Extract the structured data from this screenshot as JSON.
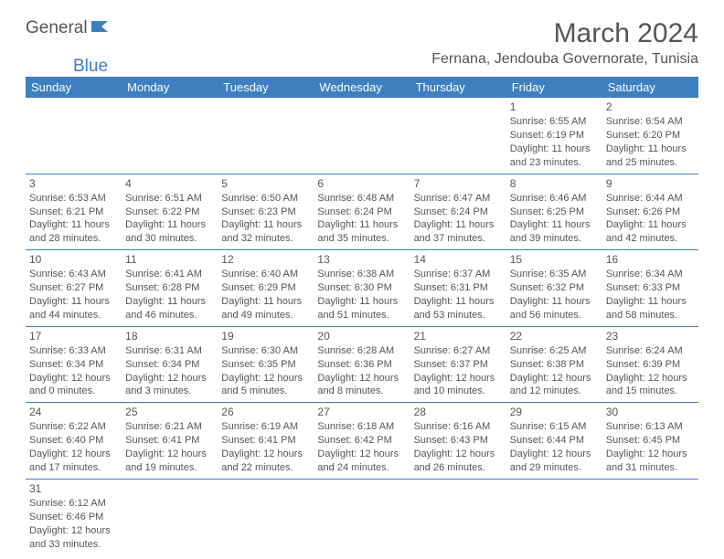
{
  "brand": {
    "text1": "General",
    "text2": "Blue"
  },
  "title": "March 2024",
  "location": "Fernana, Jendouba Governorate, Tunisia",
  "colors": {
    "header_bg": "#3d7fbf",
    "header_text": "#ffffff",
    "border": "#3d7fbf"
  },
  "weekdays": [
    "Sunday",
    "Monday",
    "Tuesday",
    "Wednesday",
    "Thursday",
    "Friday",
    "Saturday"
  ],
  "leading_blanks": 5,
  "days": [
    {
      "n": 1,
      "sunrise": "6:55 AM",
      "sunset": "6:19 PM",
      "daylight": "11 hours and 23 minutes."
    },
    {
      "n": 2,
      "sunrise": "6:54 AM",
      "sunset": "6:20 PM",
      "daylight": "11 hours and 25 minutes."
    },
    {
      "n": 3,
      "sunrise": "6:53 AM",
      "sunset": "6:21 PM",
      "daylight": "11 hours and 28 minutes."
    },
    {
      "n": 4,
      "sunrise": "6:51 AM",
      "sunset": "6:22 PM",
      "daylight": "11 hours and 30 minutes."
    },
    {
      "n": 5,
      "sunrise": "6:50 AM",
      "sunset": "6:23 PM",
      "daylight": "11 hours and 32 minutes."
    },
    {
      "n": 6,
      "sunrise": "6:48 AM",
      "sunset": "6:24 PM",
      "daylight": "11 hours and 35 minutes."
    },
    {
      "n": 7,
      "sunrise": "6:47 AM",
      "sunset": "6:24 PM",
      "daylight": "11 hours and 37 minutes."
    },
    {
      "n": 8,
      "sunrise": "6:46 AM",
      "sunset": "6:25 PM",
      "daylight": "11 hours and 39 minutes."
    },
    {
      "n": 9,
      "sunrise": "6:44 AM",
      "sunset": "6:26 PM",
      "daylight": "11 hours and 42 minutes."
    },
    {
      "n": 10,
      "sunrise": "6:43 AM",
      "sunset": "6:27 PM",
      "daylight": "11 hours and 44 minutes."
    },
    {
      "n": 11,
      "sunrise": "6:41 AM",
      "sunset": "6:28 PM",
      "daylight": "11 hours and 46 minutes."
    },
    {
      "n": 12,
      "sunrise": "6:40 AM",
      "sunset": "6:29 PM",
      "daylight": "11 hours and 49 minutes."
    },
    {
      "n": 13,
      "sunrise": "6:38 AM",
      "sunset": "6:30 PM",
      "daylight": "11 hours and 51 minutes."
    },
    {
      "n": 14,
      "sunrise": "6:37 AM",
      "sunset": "6:31 PM",
      "daylight": "11 hours and 53 minutes."
    },
    {
      "n": 15,
      "sunrise": "6:35 AM",
      "sunset": "6:32 PM",
      "daylight": "11 hours and 56 minutes."
    },
    {
      "n": 16,
      "sunrise": "6:34 AM",
      "sunset": "6:33 PM",
      "daylight": "11 hours and 58 minutes."
    },
    {
      "n": 17,
      "sunrise": "6:33 AM",
      "sunset": "6:34 PM",
      "daylight": "12 hours and 0 minutes."
    },
    {
      "n": 18,
      "sunrise": "6:31 AM",
      "sunset": "6:34 PM",
      "daylight": "12 hours and 3 minutes."
    },
    {
      "n": 19,
      "sunrise": "6:30 AM",
      "sunset": "6:35 PM",
      "daylight": "12 hours and 5 minutes."
    },
    {
      "n": 20,
      "sunrise": "6:28 AM",
      "sunset": "6:36 PM",
      "daylight": "12 hours and 8 minutes."
    },
    {
      "n": 21,
      "sunrise": "6:27 AM",
      "sunset": "6:37 PM",
      "daylight": "12 hours and 10 minutes."
    },
    {
      "n": 22,
      "sunrise": "6:25 AM",
      "sunset": "6:38 PM",
      "daylight": "12 hours and 12 minutes."
    },
    {
      "n": 23,
      "sunrise": "6:24 AM",
      "sunset": "6:39 PM",
      "daylight": "12 hours and 15 minutes."
    },
    {
      "n": 24,
      "sunrise": "6:22 AM",
      "sunset": "6:40 PM",
      "daylight": "12 hours and 17 minutes."
    },
    {
      "n": 25,
      "sunrise": "6:21 AM",
      "sunset": "6:41 PM",
      "daylight": "12 hours and 19 minutes."
    },
    {
      "n": 26,
      "sunrise": "6:19 AM",
      "sunset": "6:41 PM",
      "daylight": "12 hours and 22 minutes."
    },
    {
      "n": 27,
      "sunrise": "6:18 AM",
      "sunset": "6:42 PM",
      "daylight": "12 hours and 24 minutes."
    },
    {
      "n": 28,
      "sunrise": "6:16 AM",
      "sunset": "6:43 PM",
      "daylight": "12 hours and 26 minutes."
    },
    {
      "n": 29,
      "sunrise": "6:15 AM",
      "sunset": "6:44 PM",
      "daylight": "12 hours and 29 minutes."
    },
    {
      "n": 30,
      "sunrise": "6:13 AM",
      "sunset": "6:45 PM",
      "daylight": "12 hours and 31 minutes."
    },
    {
      "n": 31,
      "sunrise": "6:12 AM",
      "sunset": "6:46 PM",
      "daylight": "12 hours and 33 minutes."
    }
  ],
  "labels": {
    "sunrise_prefix": "Sunrise: ",
    "sunset_prefix": "Sunset: ",
    "daylight_prefix": "Daylight: "
  }
}
